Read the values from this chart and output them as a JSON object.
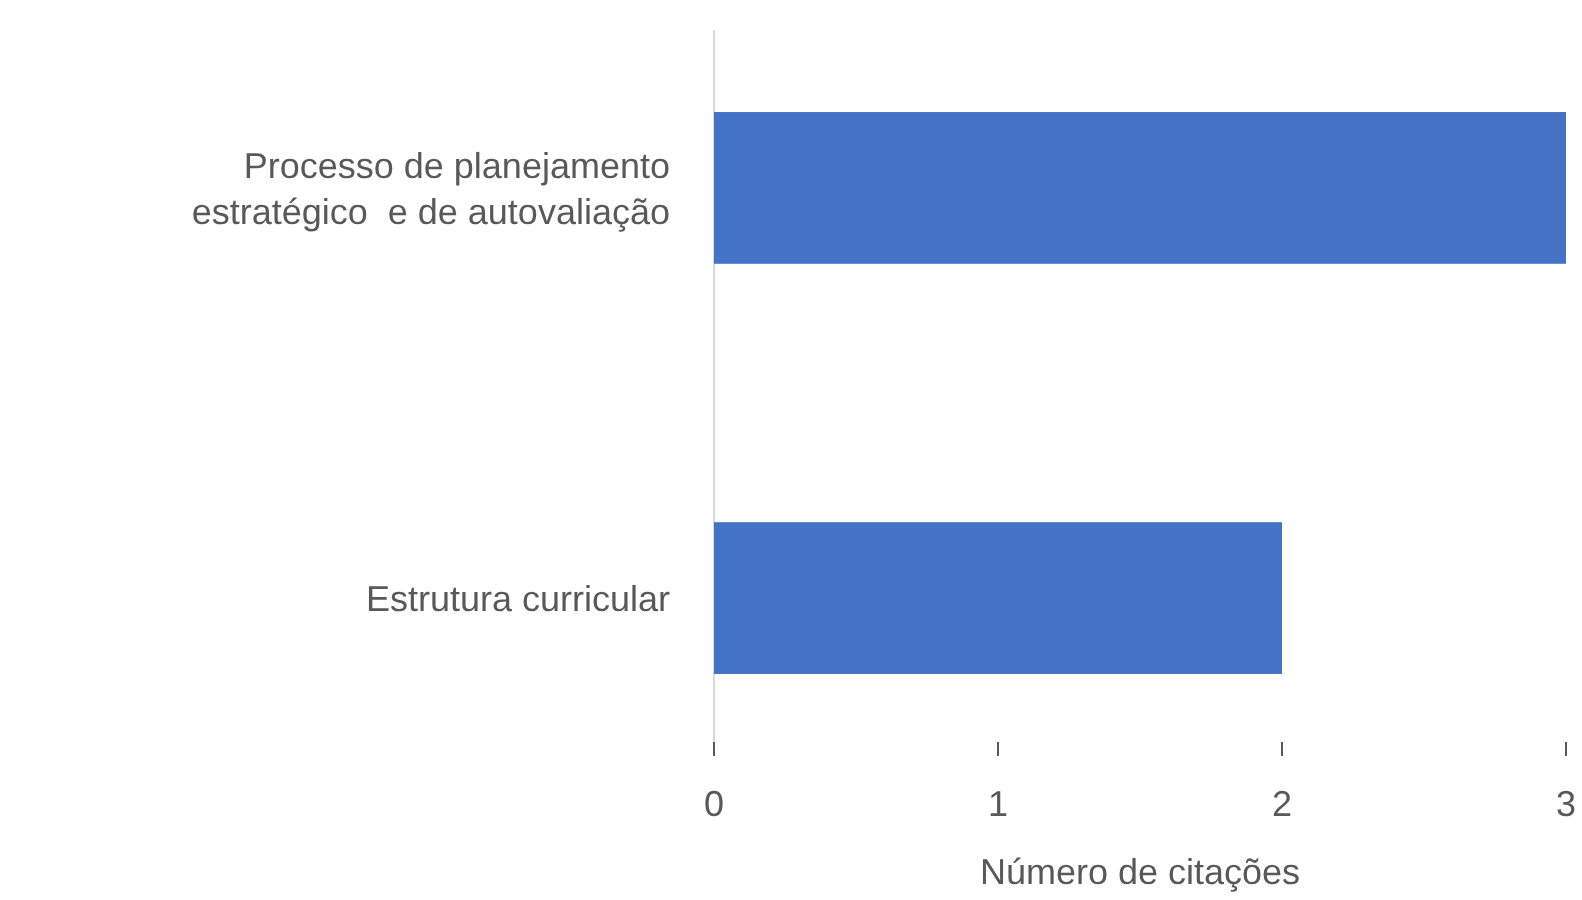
{
  "chart_data": {
    "type": "bar",
    "orientation": "horizontal",
    "categories": [
      "Processo de planejamento\nestratégico  e de autovaliação",
      "Estrutura curricular"
    ],
    "values": [
      3,
      2
    ],
    "color": "#4472c4",
    "xlim": [
      0,
      3
    ],
    "xticks": [
      0,
      1,
      2,
      3
    ],
    "xlabel": "Número de citações",
    "grid": false
  }
}
